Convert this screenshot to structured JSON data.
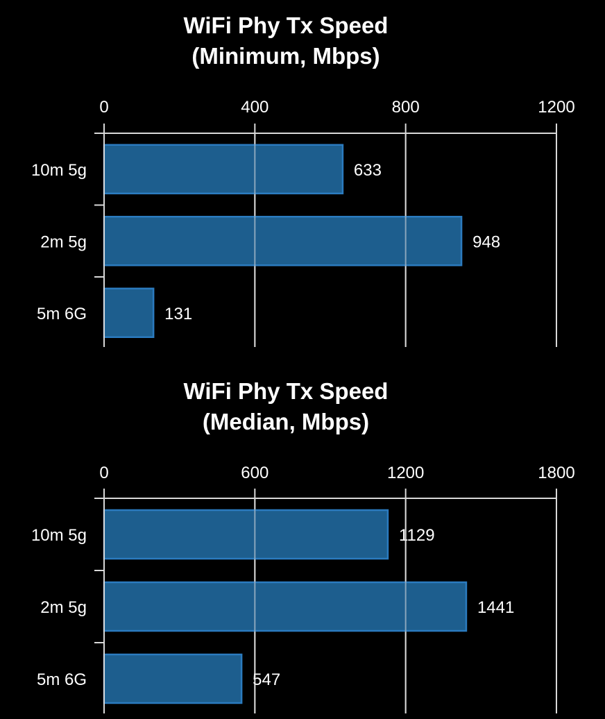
{
  "chart_data": [
    {
      "type": "bar",
      "orientation": "horizontal",
      "title": [
        "WiFi Phy Tx Speed",
        "(Minimum, Mbps)"
      ],
      "categories": [
        "10m 5g",
        "2m 5g",
        "5m 6G"
      ],
      "values": [
        633,
        948,
        131
      ],
      "xlim": [
        0,
        1200
      ],
      "ticks": [
        0,
        400,
        800,
        1200
      ],
      "grid": true,
      "axis_position": "top",
      "bar_color": "#1f6396",
      "bar_edge_color": "#2b7bbf"
    },
    {
      "type": "bar",
      "orientation": "horizontal",
      "title": [
        "WiFi Phy Tx Speed",
        "(Median, Mbps)"
      ],
      "categories": [
        "10m 5g",
        "2m 5g",
        "5m 6G"
      ],
      "values": [
        1129,
        1441,
        547
      ],
      "xlim": [
        0,
        1800
      ],
      "ticks": [
        0,
        600,
        1200,
        1800
      ],
      "grid": true,
      "axis_position": "top",
      "bar_color": "#1f6396",
      "bar_edge_color": "#2b7bbf"
    }
  ]
}
